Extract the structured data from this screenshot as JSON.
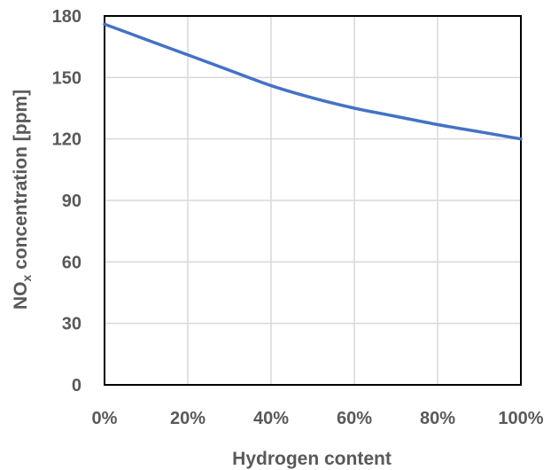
{
  "chart_data": {
    "type": "line",
    "title": "",
    "xlabel": "Hydrogen content",
    "ylabel": {
      "main": "NO",
      "sub": "x",
      "rest": " concentration [ppm]"
    },
    "x": [
      0,
      10,
      20,
      30,
      40,
      50,
      60,
      70,
      80,
      90,
      100
    ],
    "series": [
      {
        "values": [
          176,
          168.5,
          161,
          153.5,
          146,
          140,
          135,
          131,
          127,
          123.5,
          120
        ],
        "color": "#4472C4"
      }
    ],
    "xlim": [
      0,
      100
    ],
    "ylim": [
      0,
      180
    ],
    "xticks": [
      0,
      20,
      40,
      60,
      80,
      100
    ],
    "xtick_labels": [
      "0%",
      "20%",
      "40%",
      "60%",
      "80%",
      "100%"
    ],
    "yticks": [
      0,
      30,
      60,
      90,
      120,
      150,
      180
    ],
    "ytick_labels": [
      "0",
      "30",
      "60",
      "90",
      "120",
      "150",
      "180"
    ],
    "grid": true,
    "legend": "none"
  }
}
